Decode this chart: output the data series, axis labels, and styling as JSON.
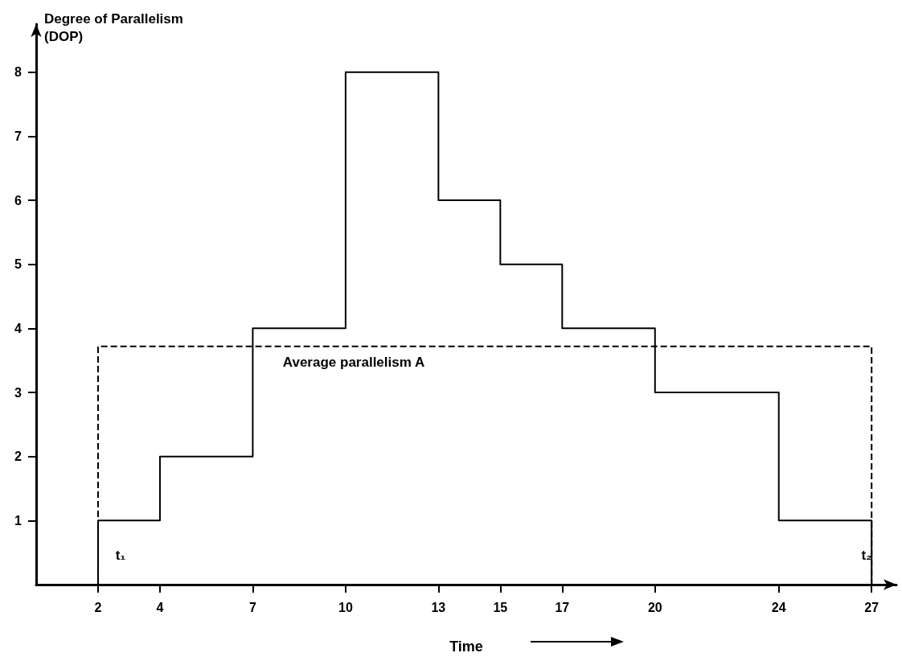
{
  "chart_data": {
    "type": "step",
    "xlabel": "Time",
    "ylabel": "Degree of Parallelism (DOP)",
    "xlim": [
      0,
      27.8
    ],
    "xticks": [
      2,
      4,
      7,
      10,
      13,
      15,
      17,
      20,
      24,
      27
    ],
    "ylim": [
      0,
      8.75
    ],
    "yticks": [
      1,
      2,
      3,
      4,
      5,
      6,
      7,
      8
    ],
    "grid": false,
    "marker": "none",
    "series": [
      {
        "color": "#000000",
        "x": [
          2,
          2,
          4,
          7,
          10,
          13,
          15,
          17,
          20,
          24,
          27,
          27
        ],
        "values": [
          0,
          1,
          2,
          4,
          8,
          6,
          5,
          4,
          3,
          1,
          1,
          0
        ]
      },
      {
        "type": "line",
        "line_style": "dashed",
        "color": "#000000",
        "x": [
          2,
          2,
          27,
          27
        ],
        "values": [
          0,
          3.72,
          3.72,
          0
        ]
      }
    ],
    "annotations": [
      "Average parallelism A",
      "t₁",
      "t₂"
    ]
  }
}
